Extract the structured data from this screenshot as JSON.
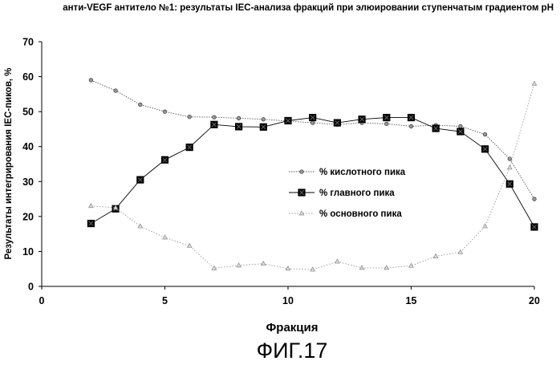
{
  "chart_data": {
    "type": "line",
    "title": "анти-VEGF антитело №1: результаты IEC-анализа фракций при элюировании ступенчатым градиентом pH",
    "xlabel": "Фракция",
    "ylabel": "Результаты интегрирования IEC-пиков, %",
    "xlim": [
      0,
      20
    ],
    "ylim": [
      0,
      70
    ],
    "xticks": [
      "0",
      "5",
      "10",
      "15",
      "20"
    ],
    "yticks": [
      "0",
      "10",
      "20",
      "30",
      "40",
      "50",
      "60",
      "70"
    ],
    "grid": false,
    "legend_position": "center-right",
    "x": [
      2,
      3,
      4,
      5,
      6,
      7,
      8,
      9,
      10,
      11,
      12,
      13,
      14,
      15,
      16,
      17,
      18,
      19,
      20
    ],
    "series": [
      {
        "name": "% кислотного пика",
        "marker": "small-dot",
        "values": [
          59,
          56,
          52,
          50,
          48.5,
          48.4,
          48.1,
          47.8,
          47.3,
          46.8,
          46.3,
          46.8,
          46.5,
          45.8,
          46.1,
          45.8,
          43.5,
          36.5,
          25
        ]
      },
      {
        "name": "% главного пика",
        "marker": "large-square-x",
        "values": [
          18,
          22.2,
          30.5,
          36.2,
          39.8,
          46.3,
          45.7,
          45.6,
          47.4,
          48.3,
          46.8,
          47.8,
          48.3,
          48.3,
          45.2,
          44.3,
          39.3,
          29.3,
          17
        ]
      },
      {
        "name": "% основного пика",
        "marker": "triangle",
        "values": [
          23,
          22.5,
          17.2,
          14,
          11.6,
          5.2,
          6,
          6.5,
          5.1,
          4.8,
          7.1,
          5.3,
          5.3,
          5.9,
          8.6,
          9.8,
          17.2,
          34,
          58
        ]
      }
    ]
  },
  "figure_label": "ФИГ.17",
  "colors": {
    "axis": "#000000",
    "acidic": "#555555",
    "main": "#000000",
    "basic": "#999999"
  }
}
